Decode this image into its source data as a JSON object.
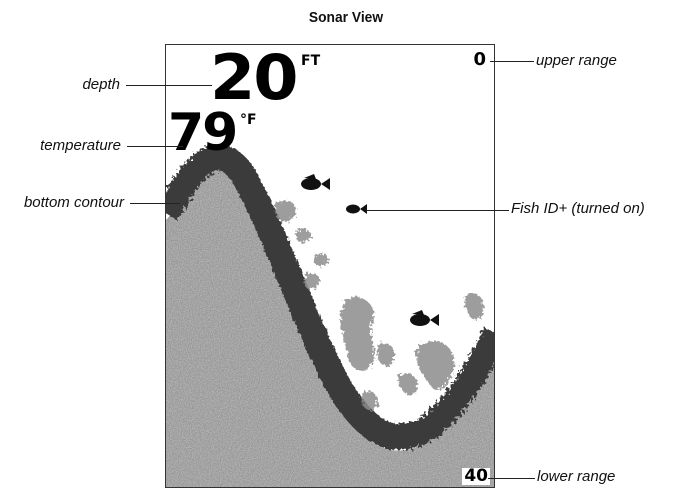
{
  "title": "Sonar View",
  "readouts": {
    "depth_value": "20",
    "depth_unit": "FT",
    "temperature_value": "79",
    "temperature_unit": "°F",
    "upper_range": "0",
    "lower_range": "40"
  },
  "callouts": {
    "depth": "depth",
    "temperature": "temperature",
    "bottom_contour": "bottom contour",
    "upper_range": "upper range",
    "fish_id": "Fish ID+ (turned on)",
    "lower_range": "lower range"
  },
  "colors": {
    "bottom_band": "#3a3a3a",
    "seabed": "#9a9a9a",
    "clutter": "#8c8c8c"
  }
}
